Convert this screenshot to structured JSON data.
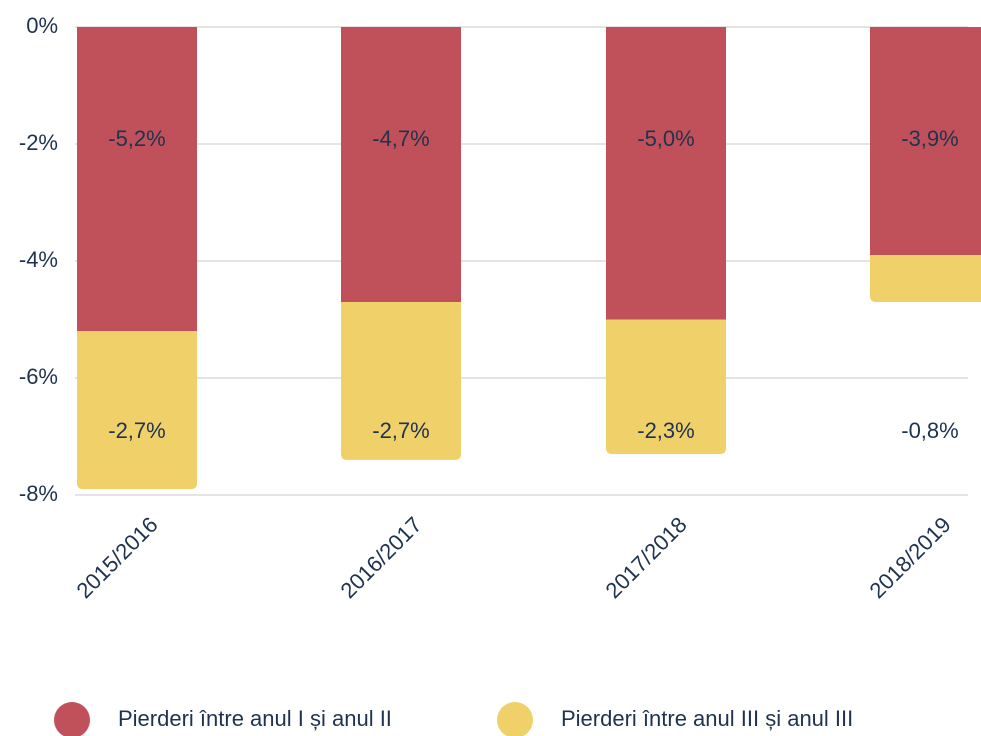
{
  "chart_data": {
    "type": "bar",
    "stacked": true,
    "categories": [
      "2015/2016",
      "2016/2017",
      "2017/2018",
      "2018/2019"
    ],
    "series": [
      {
        "name": "Pierderi între anul I și anul II",
        "color": "#c0505a",
        "values": [
          -5.2,
          -4.7,
          -5.0,
          -3.9
        ],
        "value_labels": [
          "-5,2%",
          "-4,7%",
          "-5,0%",
          "-3,9%"
        ]
      },
      {
        "name": "Pierderi între anul III și anul III",
        "color": "#f0d068",
        "values": [
          -2.7,
          -2.7,
          -2.3,
          -0.8
        ],
        "value_labels": [
          "-2,7%",
          "-2,7%",
          "-2,3%",
          "-0,8%"
        ]
      }
    ],
    "ylim": [
      -8,
      0
    ],
    "yticks": [
      {
        "value": 0,
        "label": "0%"
      },
      {
        "value": -2,
        "label": "-2%"
      },
      {
        "value": -4,
        "label": "-4%"
      },
      {
        "value": -6,
        "label": "-6%"
      },
      {
        "value": -8,
        "label": "-8%"
      }
    ],
    "grid": true,
    "legend": "bottom"
  }
}
